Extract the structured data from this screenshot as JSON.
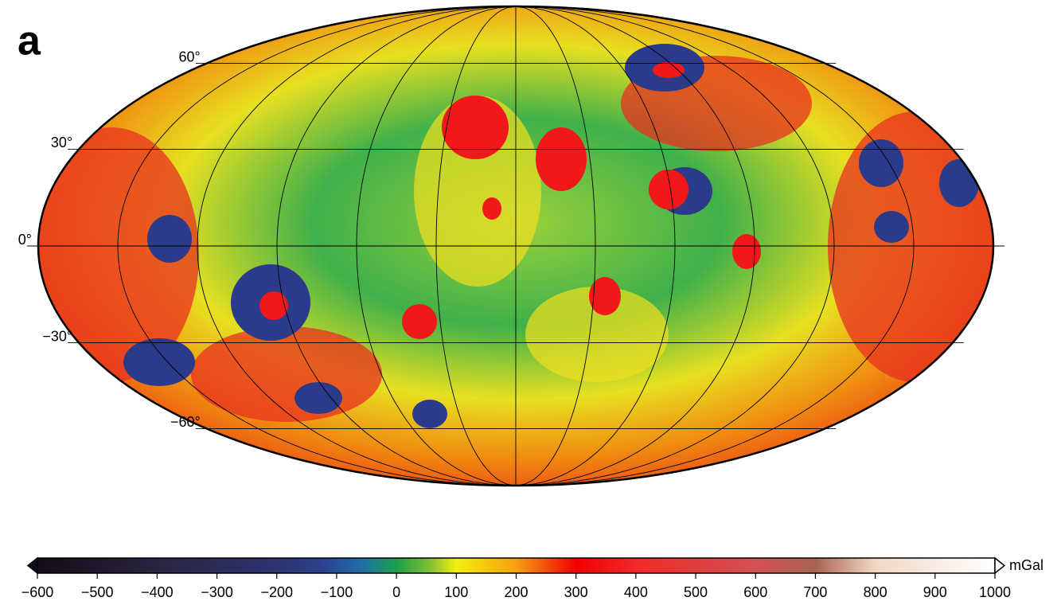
{
  "panel_label": "a",
  "map": {
    "projection": "mollweide",
    "lat_ticks": [
      {
        "value": 60,
        "label": "60°"
      },
      {
        "value": 30,
        "label": "30°"
      },
      {
        "value": 0,
        "label": "0°"
      },
      {
        "value": -30,
        "label": "−30°"
      },
      {
        "value": -60,
        "label": "−60°"
      }
    ]
  },
  "colorbar": {
    "unit": "mGal",
    "lim": [
      -600,
      1000
    ],
    "ticks": [
      {
        "value": -600,
        "label": "−600"
      },
      {
        "value": -500,
        "label": "−500"
      },
      {
        "value": -400,
        "label": "−400"
      },
      {
        "value": -300,
        "label": "−300"
      },
      {
        "value": -200,
        "label": "−200"
      },
      {
        "value": -100,
        "label": "−100"
      },
      0,
      100,
      200,
      300,
      400,
      500,
      600,
      700,
      800,
      900,
      1000
    ]
  }
}
